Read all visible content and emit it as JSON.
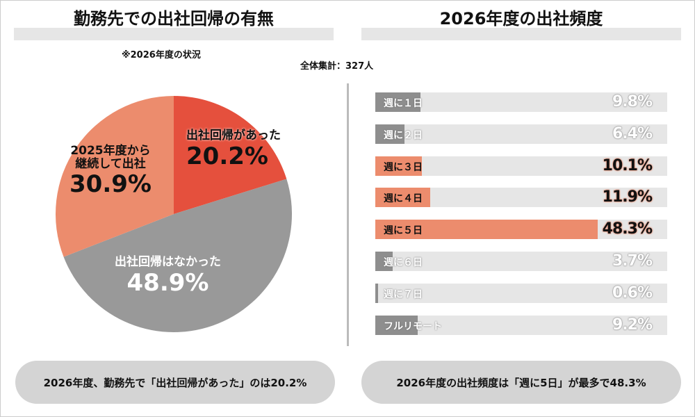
{
  "left": {
    "title": "勤務先での出社回帰の有無",
    "note": "※2026年度の状況",
    "summary": "2026年度、勤務先で「出社回帰があった」のは20.2%"
  },
  "center_note": "全体集計：327人",
  "right": {
    "title": "2026年度の出社頻度",
    "summary": "2026年度の出社頻度は「週に5日」が最多で48.3%"
  },
  "chart_data": [
    {
      "type": "pie",
      "start": "top",
      "direction": "clockwise",
      "slices": [
        {
          "label": "出社回帰があった",
          "value": 20.2,
          "display": "20.2%",
          "color": "#e5503d"
        },
        {
          "label": "出社回帰はなかった",
          "value": 48.9,
          "display": "48.9%",
          "color": "#999999"
        },
        {
          "label_lines": [
            "2025年度から",
            "継続して出社"
          ],
          "value": 30.9,
          "display": "30.9%",
          "color": "#ec8c6d"
        }
      ]
    },
    {
      "type": "bar",
      "orientation": "horizontal",
      "categories": [
        "週に１日",
        "週に２日",
        "週に３日",
        "週に４日",
        "週に５日",
        "週に６日",
        "週に７日",
        "フルリモート"
      ],
      "values": [
        9.8,
        6.4,
        10.1,
        11.9,
        48.3,
        3.7,
        0.6,
        9.2
      ],
      "labels": [
        "9.8%",
        "6.4%",
        "10.1%",
        "11.9%",
        "48.3%",
        "3.7%",
        "0.6%",
        "9.2%"
      ],
      "highlight": [
        false,
        false,
        true,
        true,
        true,
        false,
        false,
        false
      ],
      "colors": {
        "normal": "#8e8e8e",
        "highlight": "#ec8c6d",
        "track": "#e6e6e6"
      }
    }
  ]
}
